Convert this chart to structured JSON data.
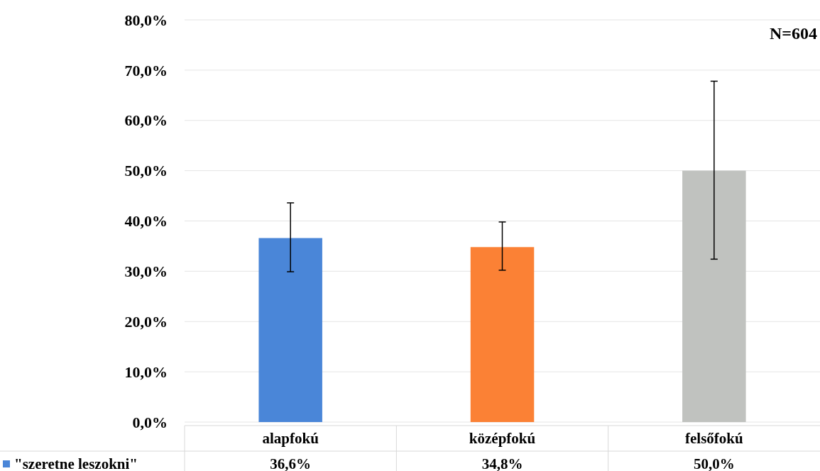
{
  "chart_data": {
    "type": "bar",
    "categories": [
      "alapfokú",
      "középfokú",
      "felsőfokú"
    ],
    "series": [
      {
        "name": "\"szeretne leszokni\"",
        "color": "#4a86d8",
        "colors": [
          "#4a86d8",
          "#fb8135",
          "#c0c2bf"
        ],
        "values": [
          36.6,
          34.8,
          50.0
        ],
        "errors": [
          [
            29.9,
            43.6
          ],
          [
            30.2,
            39.8
          ],
          [
            32.4,
            67.8
          ]
        ]
      }
    ],
    "ylim": [
      0,
      80
    ],
    "yticks": [
      {
        "value": 0,
        "label": "0,0%"
      },
      {
        "value": 10,
        "label": "10,0%"
      },
      {
        "value": 20,
        "label": "20,0%"
      },
      {
        "value": 30,
        "label": "30,0%"
      },
      {
        "value": 40,
        "label": "40,0%"
      },
      {
        "value": 50,
        "label": "50,0%"
      },
      {
        "value": 60,
        "label": "60,0%"
      },
      {
        "value": 70,
        "label": "70,0%"
      },
      {
        "value": 80,
        "label": "80,0%"
      }
    ],
    "value_labels": [
      "36,6%",
      "34,8%",
      "50,0%"
    ],
    "grid": "y",
    "legend": "bottom",
    "annotations": [
      "N=604"
    ]
  }
}
